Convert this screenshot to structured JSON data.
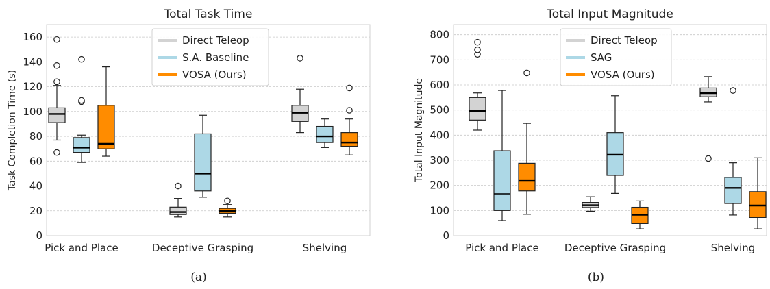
{
  "chart_data": [
    {
      "type": "box",
      "title": "Total Task Time",
      "xlabel": "",
      "ylabel": "Task Completion Time (s)",
      "ylim": [
        0,
        170
      ],
      "yticks": [
        0,
        20,
        40,
        60,
        80,
        100,
        120,
        140,
        160
      ],
      "grid": "horizontal",
      "legend_position": "top-center",
      "caption": "(a)",
      "categories": [
        "Pick and Place",
        "Deceptive Grasping",
        "Shelving"
      ],
      "series": [
        {
          "name": "Direct Teleop",
          "color": "#d3d3d3",
          "boxes": [
            {
              "min": 77,
              "q1": 91,
              "median": 98,
              "q3": 103,
              "max": 121,
              "outliers": [
                67,
                124,
                137,
                158
              ]
            },
            {
              "min": 15,
              "q1": 17,
              "median": 19,
              "q3": 23,
              "max": 30,
              "outliers": [
                40
              ]
            },
            {
              "min": 83,
              "q1": 92,
              "median": 99,
              "q3": 105,
              "max": 118,
              "outliers": [
                143
              ]
            }
          ]
        },
        {
          "name": "S.A. Baseline",
          "color": "#add8e6",
          "boxes": [
            {
              "min": 59,
              "q1": 67,
              "median": 71,
              "q3": 79,
              "max": 81,
              "outliers": [
                108,
                109,
                142
              ]
            },
            {
              "min": 31,
              "q1": 36,
              "median": 50,
              "q3": 82,
              "max": 97,
              "outliers": []
            },
            {
              "min": 71,
              "q1": 75,
              "median": 80,
              "q3": 88,
              "max": 94,
              "outliers": []
            }
          ]
        },
        {
          "name": "VOSA (Ours)",
          "color": "#ff8c00",
          "boxes": [
            {
              "min": 64,
              "q1": 70,
              "median": 74,
              "q3": 105,
              "max": 136,
              "outliers": []
            },
            {
              "min": 15,
              "q1": 18,
              "median": 20,
              "q3": 22,
              "max": 25,
              "outliers": [
                28
              ]
            },
            {
              "min": 65,
              "q1": 72,
              "median": 75,
              "q3": 83,
              "max": 94,
              "outliers": [
                101,
                119
              ]
            }
          ]
        }
      ]
    },
    {
      "type": "box",
      "title": "Total Input Magnitude",
      "xlabel": "",
      "ylabel": "Total Input Magnitude",
      "ylim": [
        0,
        840
      ],
      "yticks": [
        0,
        100,
        200,
        300,
        400,
        500,
        600,
        700,
        800
      ],
      "grid": "horizontal",
      "legend_position": "top-center",
      "caption": "(b)",
      "categories": [
        "Pick and Place",
        "Deceptive Grasping",
        "Shelving"
      ],
      "series": [
        {
          "name": "Direct Teleop",
          "color": "#d3d3d3",
          "boxes": [
            {
              "min": 420,
              "q1": 460,
              "median": 497,
              "q3": 550,
              "max": 568,
              "outliers": [
                722,
                740,
                770
              ]
            },
            {
              "min": 97,
              "q1": 112,
              "median": 121,
              "q3": 132,
              "max": 155,
              "outliers": []
            },
            {
              "min": 532,
              "q1": 553,
              "median": 567,
              "q3": 588,
              "max": 633,
              "outliers": [
                307
              ]
            }
          ]
        },
        {
          "name": "SAG",
          "color": "#add8e6",
          "boxes": [
            {
              "min": 60,
              "q1": 100,
              "median": 165,
              "q3": 338,
              "max": 578,
              "outliers": []
            },
            {
              "min": 168,
              "q1": 240,
              "median": 322,
              "q3": 410,
              "max": 557,
              "outliers": []
            },
            {
              "min": 82,
              "q1": 128,
              "median": 190,
              "q3": 232,
              "max": 290,
              "outliers": [
                578
              ]
            }
          ]
        },
        {
          "name": "VOSA (Ours)",
          "color": "#ff8c00",
          "boxes": [
            {
              "min": 85,
              "q1": 178,
              "median": 218,
              "q3": 288,
              "max": 447,
              "outliers": [
                648
              ]
            },
            {
              "min": 27,
              "q1": 48,
              "median": 83,
              "q3": 113,
              "max": 138,
              "outliers": []
            },
            {
              "min": 27,
              "q1": 72,
              "median": 120,
              "q3": 175,
              "max": 310,
              "outliers": []
            }
          ]
        }
      ]
    }
  ]
}
